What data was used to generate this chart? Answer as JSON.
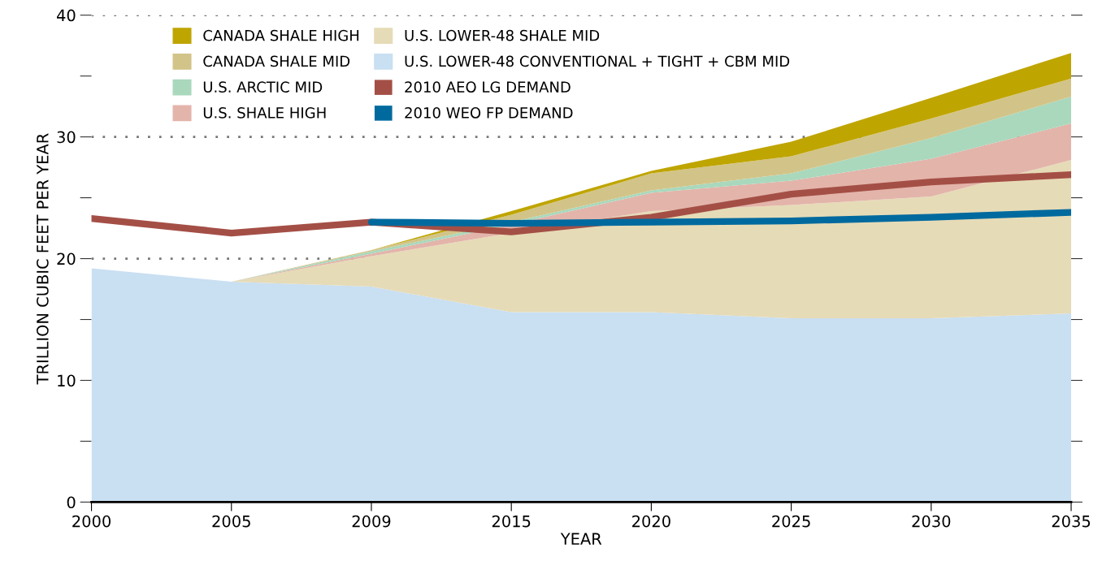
{
  "chart_data": {
    "type": "area",
    "stacked": true,
    "xlabel": "YEAR",
    "ylabel": "TRILLION CUBIC FEET PER YEAR",
    "categories": [
      "2000",
      "2005",
      "2009",
      "2015",
      "2020",
      "2025",
      "2030",
      "2035"
    ],
    "series": [
      {
        "name": "U.S. LOWER-48 CONVENTIONAL + TIGHT + CBM MID",
        "color": "#c9dff2",
        "values": [
          19.2,
          18.1,
          17.7,
          15.6,
          15.6,
          15.1,
          15.1,
          15.5
        ]
      },
      {
        "name": "U.S. LOWER-48 SHALE MID",
        "color": "#e6dbb7",
        "values": [
          0,
          0,
          2.5,
          6.5,
          8.3,
          9.3,
          10.0,
          12.6
        ]
      },
      {
        "name": "U.S. SHALE HIGH",
        "color": "#e3b4aa",
        "values": [
          0,
          0,
          0.2,
          0.7,
          1.5,
          2.0,
          3.1,
          3.0
        ]
      },
      {
        "name": "U.S. ARCTIC MID",
        "color": "#a9d8bd",
        "values": [
          0,
          0,
          0.2,
          0.2,
          0.2,
          0.6,
          1.7,
          2.2
        ]
      },
      {
        "name": "CANADA SHALE MID",
        "color": "#d2c488",
        "values": [
          0,
          0,
          0.1,
          0.6,
          1.4,
          1.4,
          1.6,
          1.5
        ]
      },
      {
        "name": "CANADA SHALE HIGH",
        "color": "#bfa500",
        "values": [
          0,
          0,
          0.0,
          0.3,
          0.2,
          1.2,
          1.7,
          2.1
        ]
      },
      {
        "name": "2010 AEO LG DEMAND",
        "type": "line",
        "color": "#a44f46",
        "values": [
          23.3,
          22.1,
          23.0,
          22.2,
          23.4,
          25.3,
          26.3,
          26.9
        ]
      },
      {
        "name": "2010 WEO FP DEMAND",
        "type": "line",
        "color": "#006a9e",
        "values": [
          null,
          null,
          23.0,
          22.9,
          23.0,
          23.1,
          23.4,
          23.8
        ]
      }
    ],
    "ylim": [
      0,
      40
    ],
    "yticks": [
      0,
      {
        "value": 5,
        "label": null
      },
      10,
      {
        "value": 15,
        "label": null
      },
      20,
      {
        "value": 25,
        "label": null
      },
      30,
      {
        "value": 35,
        "label": null
      },
      40
    ],
    "grid": "y",
    "legend": "top left"
  }
}
